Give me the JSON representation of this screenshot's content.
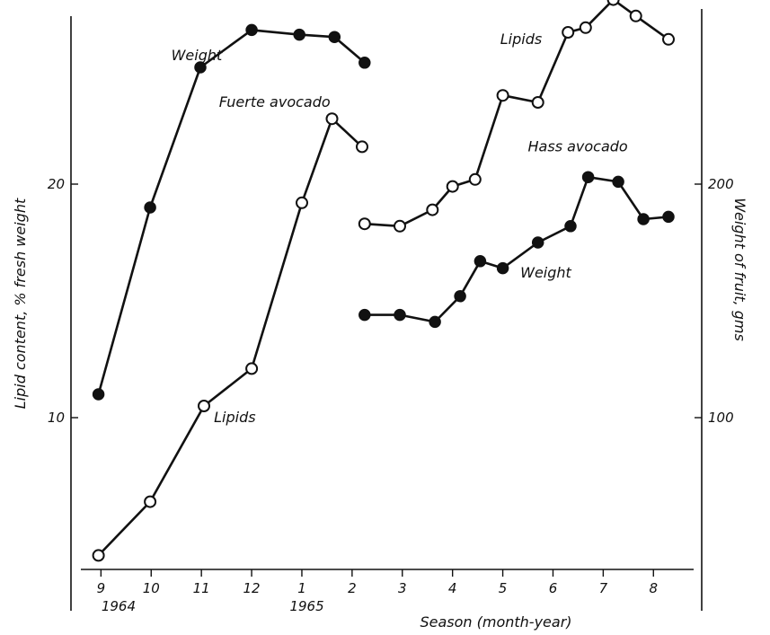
{
  "chart_data": {
    "type": "line",
    "title": "",
    "xlabel": "Season (month-year)",
    "ylabel_left": "Lipid content, % fresh weight",
    "ylabel_right": "Weight of fruit, gms",
    "x_ticks": [
      {
        "v": 9,
        "label": "9"
      },
      {
        "v": 10,
        "label": "10"
      },
      {
        "v": 11,
        "label": "11"
      },
      {
        "v": 12,
        "label": "12"
      },
      {
        "v": 13,
        "label": "1"
      },
      {
        "v": 14,
        "label": "2"
      },
      {
        "v": 15,
        "label": "3"
      },
      {
        "v": 16,
        "label": "4"
      },
      {
        "v": 17,
        "label": "5"
      },
      {
        "v": 18,
        "label": "6"
      },
      {
        "v": 19,
        "label": "7"
      },
      {
        "v": 20,
        "label": "8"
      }
    ],
    "year_labels": [
      {
        "v": 9.35,
        "label": "1964"
      },
      {
        "v": 13.1,
        "label": "1965"
      }
    ],
    "xlim": [
      8.6,
      20.8
    ],
    "ylim_left": [
      3.5,
      27.5
    ],
    "ylim_right": [
      35,
      275
    ],
    "y_ticks_left": [
      {
        "v": 10,
        "label": "10"
      },
      {
        "v": 20,
        "label": "20"
      }
    ],
    "y_ticks_right": [
      {
        "v": 100,
        "label": "100"
      },
      {
        "v": 200,
        "label": "200"
      }
    ],
    "series": [
      {
        "name": "Weight",
        "axis": "right",
        "marker": "filled",
        "x": [
          8.95,
          9.98,
          10.98,
          12.0,
          12.95,
          13.65,
          14.25
        ],
        "y": [
          110,
          190,
          250,
          266,
          264,
          263,
          252
        ]
      },
      {
        "name": "Lipids",
        "axis": "left",
        "marker": "open",
        "x": [
          8.95,
          9.98,
          11.05,
          12.0,
          13.0,
          13.6,
          14.2
        ],
        "y": [
          4.1,
          6.4,
          10.5,
          12.1,
          19.2,
          22.8,
          21.6
        ]
      },
      {
        "name": "Lipids",
        "axis": "left",
        "marker": "open",
        "x": [
          14.25,
          14.95,
          15.6,
          16.0,
          16.45,
          17.0,
          17.7,
          18.3,
          18.65,
          19.2,
          19.65,
          20.3
        ],
        "y": [
          18.3,
          18.2,
          18.9,
          19.9,
          20.2,
          23.8,
          23.5,
          26.5,
          26.7,
          27.9,
          27.2,
          26.2
        ]
      },
      {
        "name": "Weight",
        "axis": "right",
        "marker": "filled",
        "x": [
          14.25,
          14.95,
          15.65,
          16.15,
          16.55,
          17.0,
          17.7,
          18.35,
          18.7,
          19.3,
          19.8,
          20.3
        ],
        "y": [
          144,
          144,
          141,
          152,
          167,
          164,
          175,
          182,
          203,
          201,
          185,
          186
        ]
      }
    ],
    "annotations": [
      {
        "text": "Weight",
        "x": 10.4,
        "y": 25.3
      },
      {
        "text": "Fuerte avocado",
        "x": 11.35,
        "y": 23.3
      },
      {
        "text": "Lipids",
        "x": 11.25,
        "y": 9.8
      },
      {
        "text": "Lipids",
        "x": 16.95,
        "y": 26.0
      },
      {
        "text": "Hass avocado",
        "x": 17.5,
        "y": 21.4
      },
      {
        "text": "Weight",
        "x": 17.35,
        "y": 16.0
      }
    ],
    "grid": false,
    "legend": "none"
  }
}
